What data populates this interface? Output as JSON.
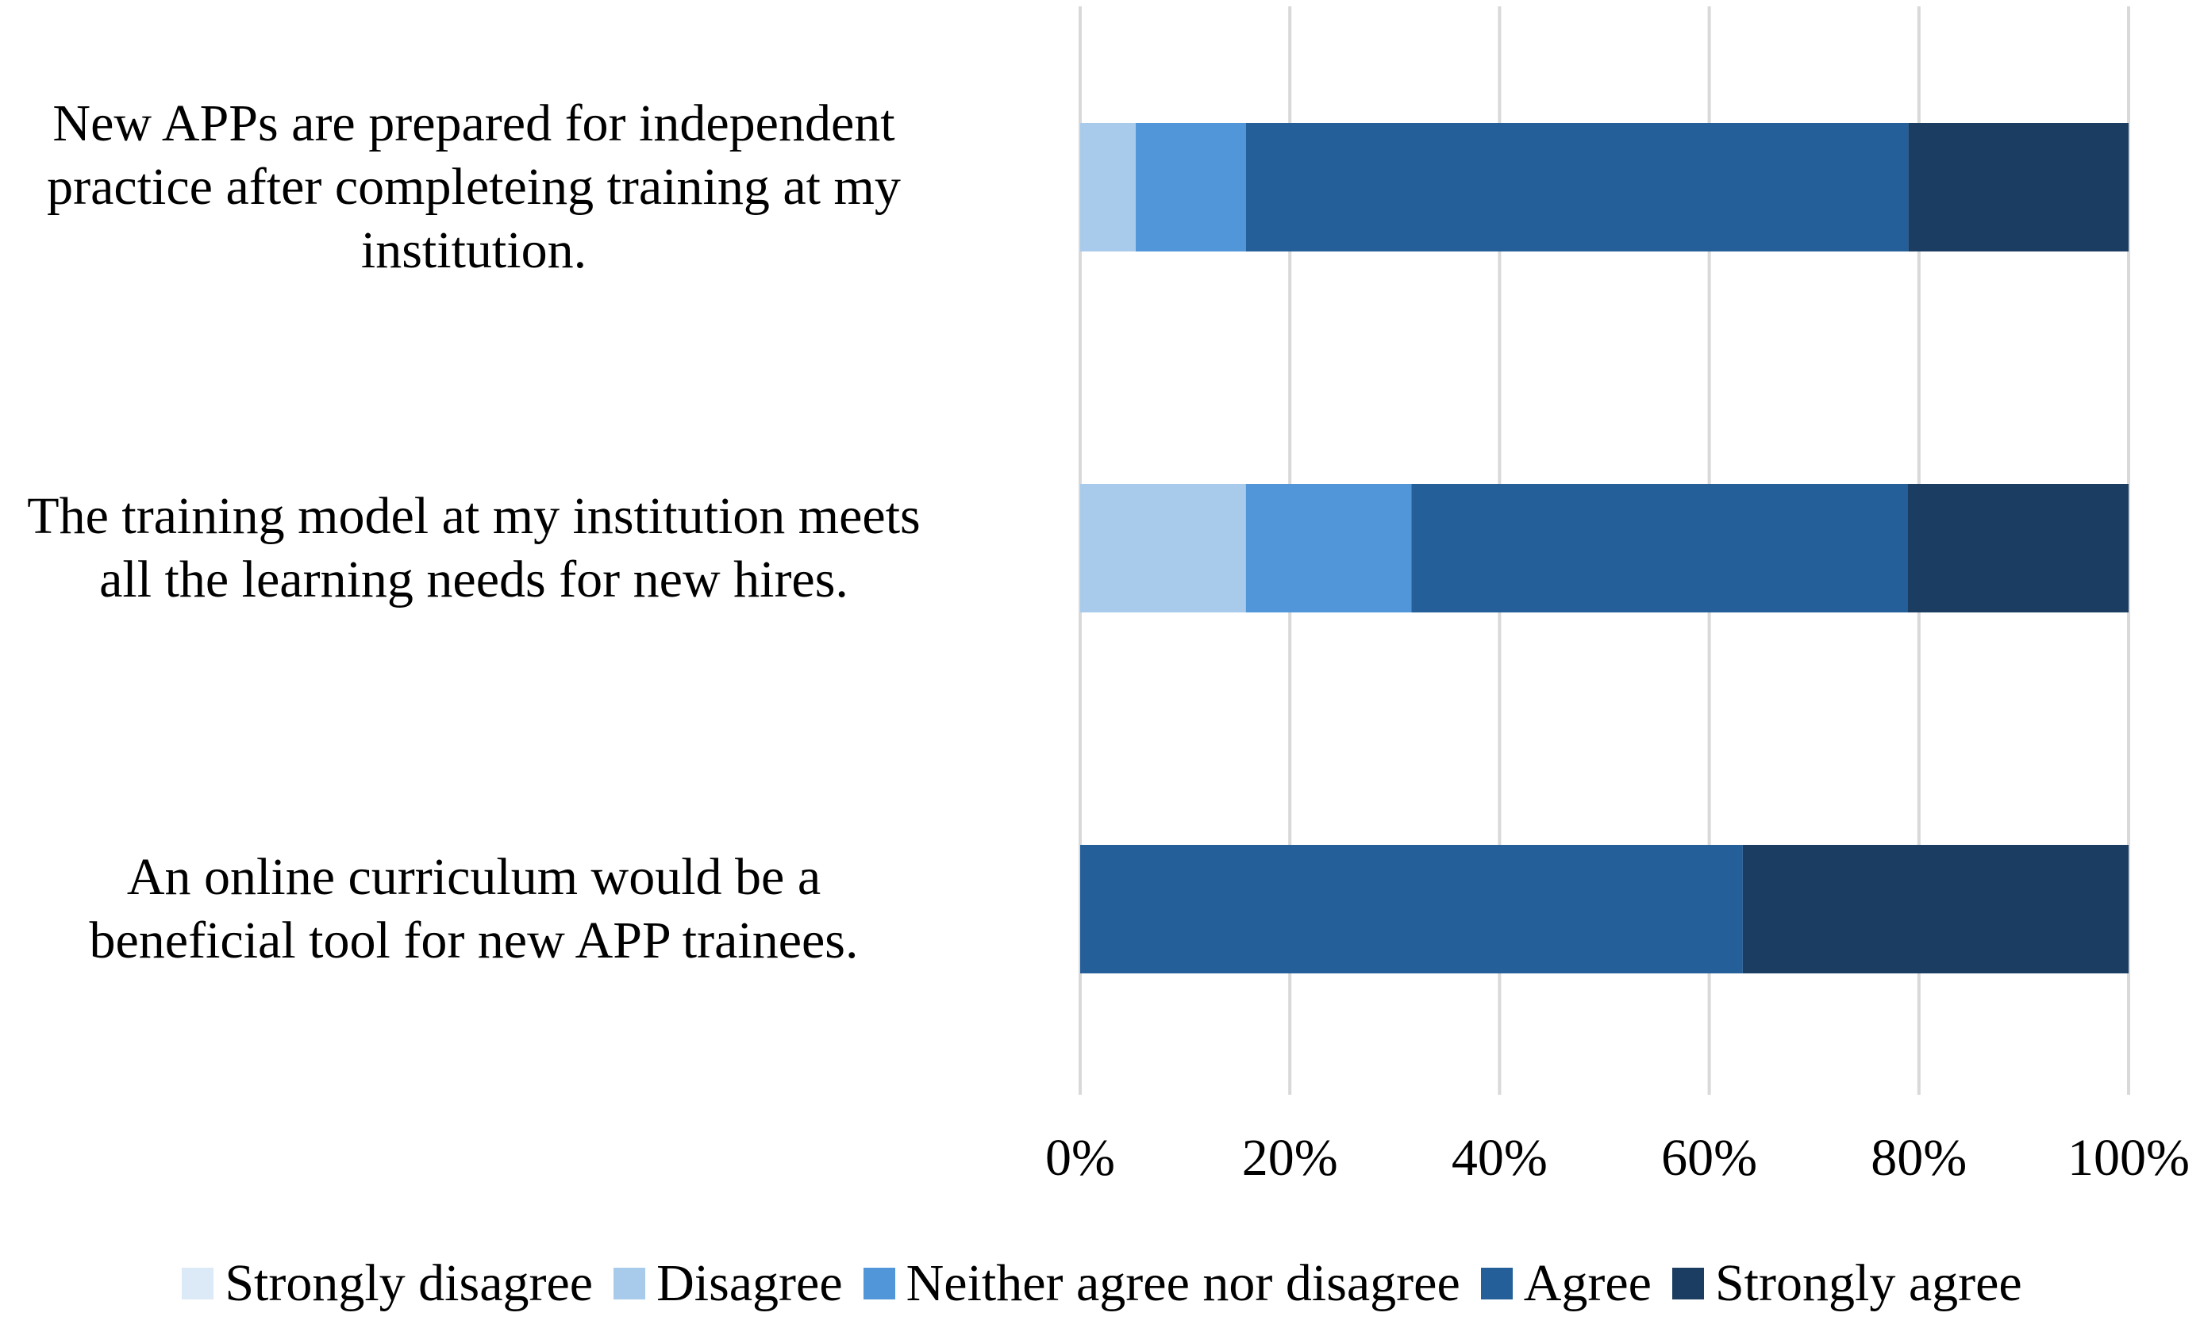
{
  "chart_data": {
    "type": "bar",
    "orientation": "horizontal",
    "stacked": true,
    "categories": [
      "New APPs are prepared for independent practice after completeing training at my institution.",
      "The training model at my institution meets all the learning needs for new hires.",
      "An online curriculum would be a beneficial tool for new APP trainees."
    ],
    "category_lines": [
      [
        "New APPs are prepared for independent",
        "practice after completeing training at my",
        "institution."
      ],
      [
        "The training model at my institution meets",
        "all the learning needs for new hires."
      ],
      [
        "An online curriculum would be a",
        "beneficial tool for new APP trainees."
      ]
    ],
    "series": [
      {
        "name": "Strongly disagree",
        "color": "#dce9f6",
        "values": [
          0,
          0,
          0
        ]
      },
      {
        "name": "Disagree",
        "color": "#a9cbeb",
        "values": [
          5.3,
          15.8,
          0
        ]
      },
      {
        "name": "Neither agree nor disagree",
        "color": "#5196d9",
        "values": [
          10.5,
          15.8,
          0
        ]
      },
      {
        "name": "Agree",
        "color": "#245f99",
        "values": [
          63.2,
          47.3,
          63.2
        ]
      },
      {
        "name": "Strongly agree",
        "color": "#1b3d62",
        "values": [
          21.0,
          21.1,
          36.8
        ]
      }
    ],
    "xlim": [
      0,
      100
    ],
    "xticks": [
      "0%",
      "20%",
      "40%",
      "60%",
      "80%",
      "100%"
    ],
    "grid": true,
    "legend_position": "bottom",
    "title": "",
    "xlabel": "",
    "ylabel": ""
  }
}
